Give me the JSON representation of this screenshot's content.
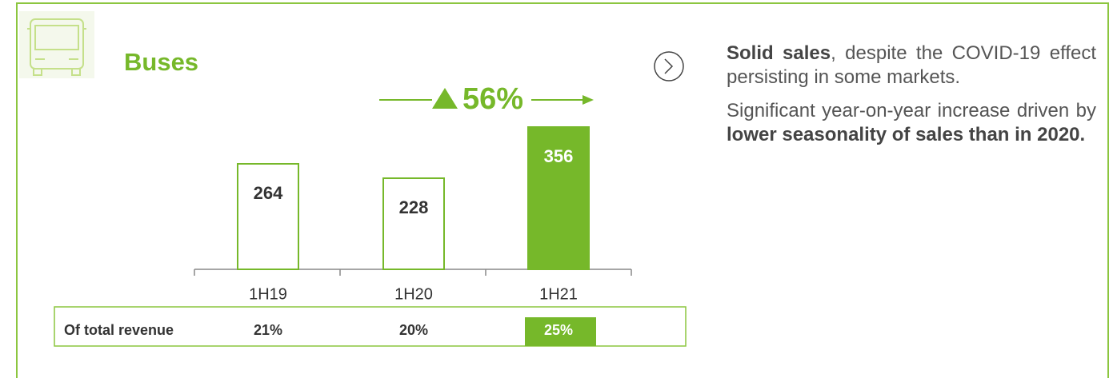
{
  "chart_data": {
    "type": "bar",
    "title": "Buses",
    "categories": [
      "1H19",
      "1H20",
      "1H21"
    ],
    "values": [
      264,
      228,
      356
    ],
    "colors": [
      "none",
      "none",
      "#76b82a"
    ],
    "color": "#76b82a",
    "growth": {
      "value": 56,
      "label": "56%"
    },
    "revenue_share": {
      "label": "Of total revenue",
      "values": [
        21,
        20,
        25
      ],
      "value_labels": [
        "21%",
        "20%",
        "25%"
      ]
    }
  },
  "notes": [
    [
      {
        "text": "Solid sales",
        "bold": true
      },
      {
        "text": ", despite the COVID-19 effect persisting in some markets.",
        "bold": false
      }
    ],
    [
      {
        "text": "Significant year-on-year increase driven by ",
        "bold": false
      },
      {
        "text": "lower seasonality of sales than in 2020.",
        "bold": true
      }
    ]
  ]
}
